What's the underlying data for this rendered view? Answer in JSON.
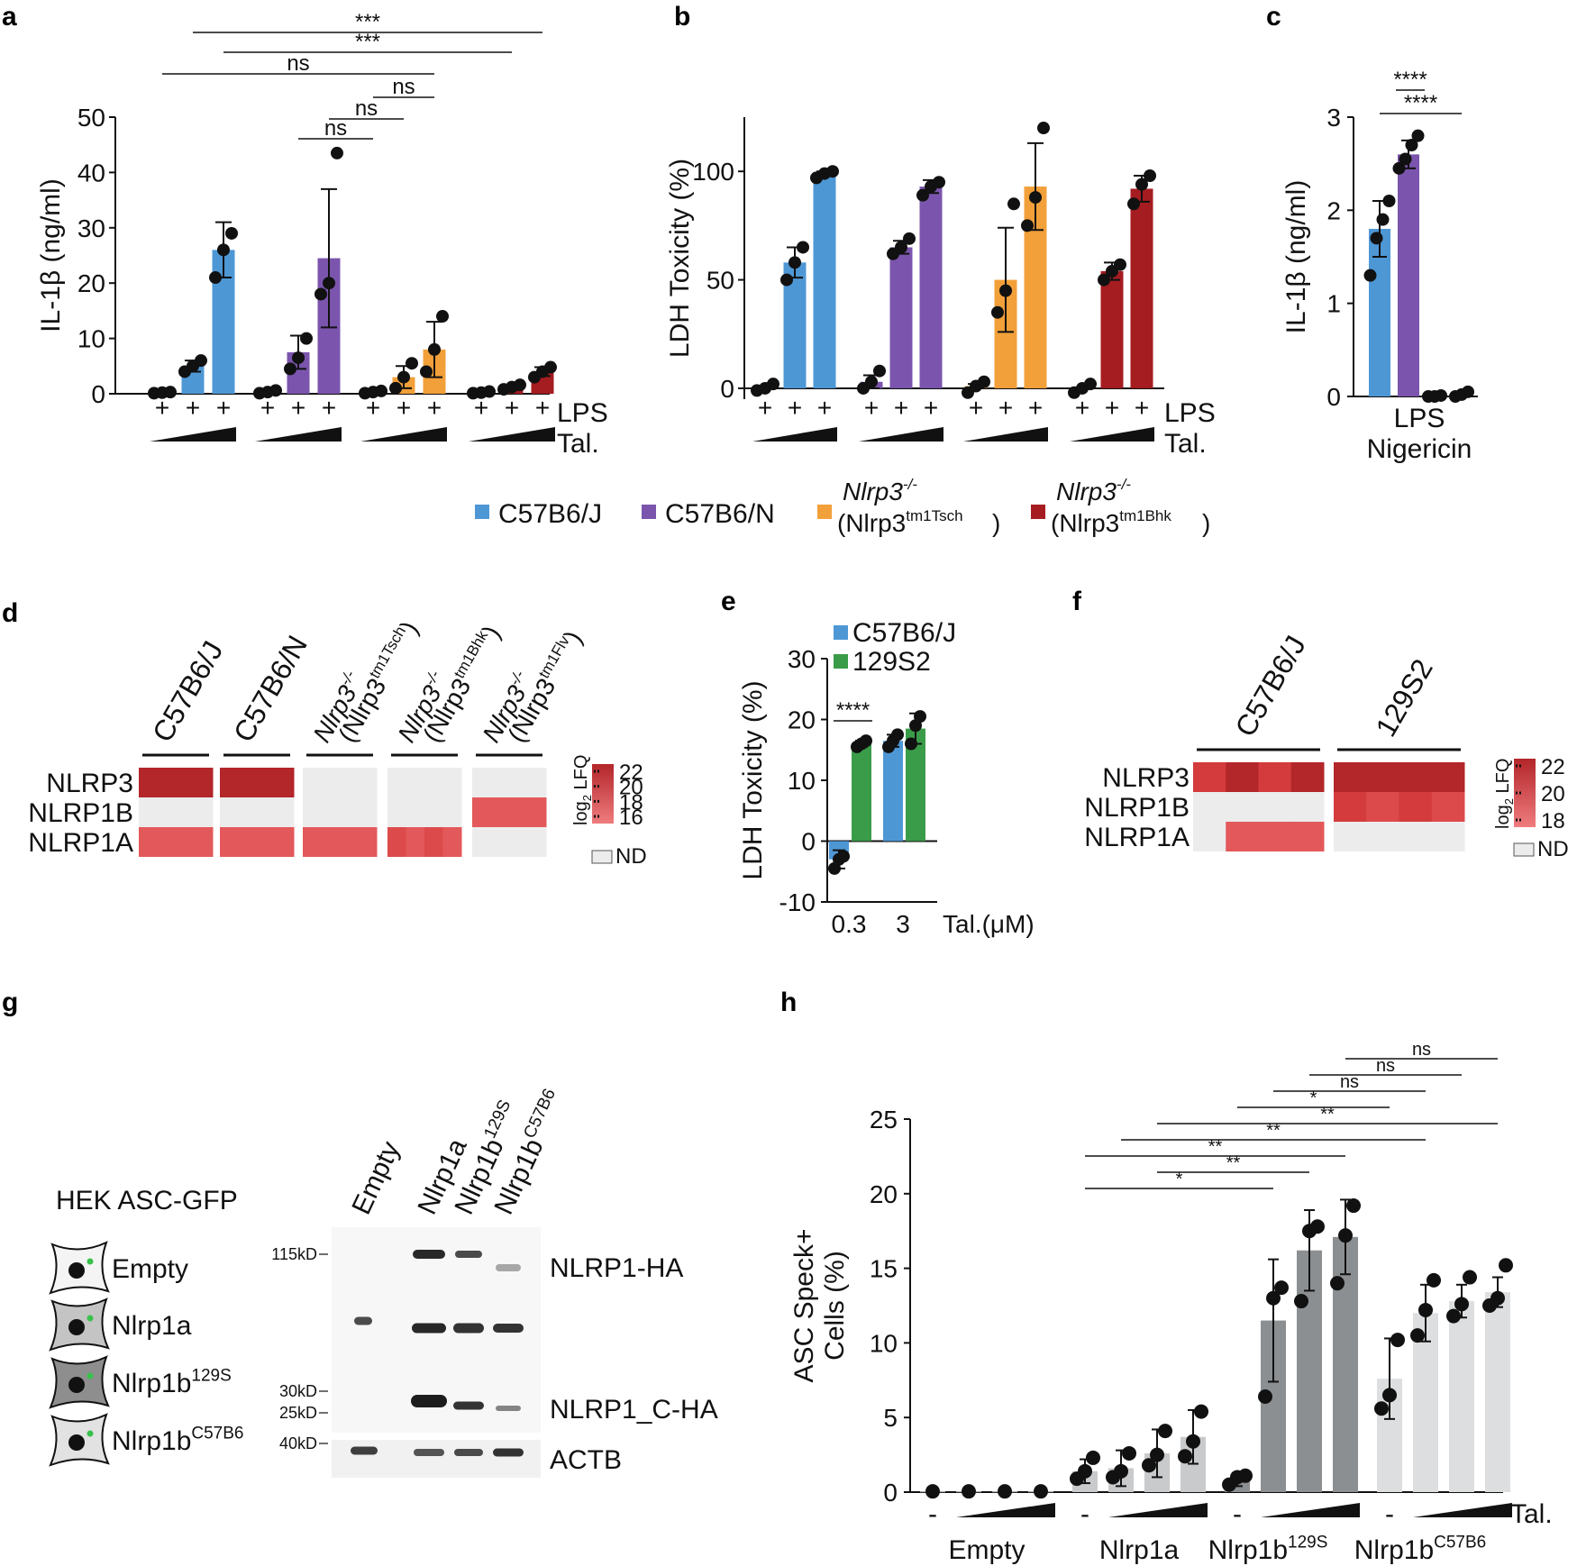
{
  "colors": {
    "blue": "#4e97d5",
    "purple": "#7b55ad",
    "orange": "#f2a03a",
    "darkred": "#a51c21",
    "green": "#3a9c48",
    "heat_hi": "#b3262a",
    "heat_mid": "#d33b3c",
    "heat_lo": "#e3595b",
    "heat_nd": "#ececed",
    "gray_light": "#c8cacc",
    "gray_mid": "#8c8f91",
    "gray_pale": "#dcdedf"
  },
  "legend_main": {
    "items": [
      {
        "label": "C57B6/J",
        "color": "blue"
      },
      {
        "label": "C57B6/N",
        "color": "purple"
      },
      {
        "label": "Nlrp3",
        "sup": "-/-",
        "sub_label": "(Nlrp3",
        "sub_sup": "tm1Tsch",
        "sub_end": ")",
        "color": "orange"
      },
      {
        "label": "Nlrp3",
        "sup": "-/-",
        "sub_label": "(Nlrp3",
        "sub_sup": "tm1Bhk",
        "sub_end": ")",
        "color": "darkred"
      }
    ]
  },
  "chart_data": [
    {
      "panel": "a",
      "type": "bar",
      "ylabel": "IL-1β (ng/ml)",
      "ylim": [
        0,
        50
      ],
      "yticks": [
        0,
        10,
        20,
        30,
        40,
        50
      ],
      "row_labels": [
        "LPS",
        "Tal."
      ],
      "plus": "+",
      "groups": [
        {
          "name": "C57B6/J",
          "color": "blue",
          "values": [
            0.2,
            5,
            26
          ],
          "err": [
            0.2,
            1,
            5
          ],
          "points": [
            [
              0.1,
              0.2,
              0.3
            ],
            [
              4,
              5,
              6
            ],
            [
              21,
              26,
              29
            ]
          ]
        },
        {
          "name": "C57B6/N",
          "color": "purple",
          "values": [
            0.3,
            7.5,
            24.5
          ],
          "err": [
            0.3,
            3,
            12.5
          ],
          "points": [
            [
              0.1,
              0.3,
              0.6
            ],
            [
              4.5,
              6.5,
              10
            ],
            [
              18,
              20,
              43.5
            ]
          ]
        },
        {
          "name": "Nlrp3 tm1Tsch",
          "color": "orange",
          "values": [
            0.2,
            3,
            8
          ],
          "err": [
            0.2,
            2,
            5
          ],
          "points": [
            [
              0.1,
              0.3,
              0.5
            ],
            [
              1,
              3,
              5.5
            ],
            [
              4,
              8,
              14
            ]
          ]
        },
        {
          "name": "Nlrp3 tm1Bhk",
          "color": "darkred",
          "values": [
            0.2,
            1.2,
            4
          ],
          "err": [
            0.2,
            0.4,
            0.8
          ],
          "points": [
            [
              0.1,
              0.2,
              0.4
            ],
            [
              0.8,
              1.2,
              1.6
            ],
            [
              3,
              4,
              4.8
            ]
          ]
        }
      ],
      "significance": [
        {
          "label": "***",
          "from": [
            0,
            1
          ],
          "to": [
            3,
            2
          ]
        },
        {
          "label": "***",
          "from": [
            0,
            2
          ],
          "to": [
            3,
            1
          ]
        },
        {
          "label": "ns",
          "from": [
            0,
            0
          ],
          "to": [
            2,
            2
          ]
        },
        {
          "label": "ns",
          "from": [
            2,
            0
          ],
          "to": [
            2,
            2
          ]
        },
        {
          "label": "ns",
          "from": [
            1,
            2
          ],
          "to": [
            2,
            1
          ]
        },
        {
          "label": "ns",
          "from": [
            1,
            1
          ],
          "to": [
            2,
            0
          ]
        }
      ]
    },
    {
      "panel": "b",
      "type": "bar",
      "ylabel": "LDH Toxicity (%)",
      "ylim": [
        -5,
        125
      ],
      "yticks": [
        0,
        50,
        100
      ],
      "row_labels": [
        "LPS",
        "Tal."
      ],
      "plus": "+",
      "groups": [
        {
          "name": "C57B6/J",
          "color": "blue",
          "values": [
            0,
            58,
            99
          ],
          "err": [
            0,
            7,
            1
          ],
          "points": [
            [
              -1,
              0,
              2
            ],
            [
              50,
              58,
              65
            ],
            [
              97,
              99,
              100
            ]
          ]
        },
        {
          "name": "C57B6/N",
          "color": "purple",
          "values": [
            3,
            65,
            93
          ],
          "err": [
            3,
            3,
            3
          ],
          "points": [
            [
              0,
              3,
              8
            ],
            [
              62,
              65,
              69
            ],
            [
              89,
              93,
              95
            ]
          ]
        },
        {
          "name": "Nlrp3 tm1Tsch",
          "color": "orange",
          "values": [
            1,
            50,
            93
          ],
          "err": [
            1,
            24,
            20
          ],
          "points": [
            [
              -2,
              1,
              3
            ],
            [
              35,
              45,
              85
            ],
            [
              75,
              88,
              120
            ]
          ]
        },
        {
          "name": "Nlrp3 tm1Bhk",
          "color": "darkred",
          "values": [
            0,
            54,
            92
          ],
          "err": [
            0,
            4,
            6
          ],
          "points": [
            [
              -2,
              0,
              2
            ],
            [
              50,
              54,
              57
            ],
            [
              85,
              94,
              98
            ]
          ]
        }
      ]
    },
    {
      "panel": "c",
      "type": "bar",
      "ylabel": "IL-1β (ng/ml)",
      "ylim": [
        0,
        3
      ],
      "yticks": [
        0,
        1,
        2,
        3
      ],
      "xlabel_lines": [
        "LPS",
        "Nigericin"
      ],
      "bars": [
        {
          "color": "blue",
          "value": 1.8,
          "err": 0.3,
          "points": [
            1.3,
            1.7,
            1.9,
            2.1
          ]
        },
        {
          "color": "purple",
          "value": 2.6,
          "err": 0.15,
          "points": [
            2.45,
            2.55,
            2.7,
            2.8
          ]
        },
        {
          "color": "orange",
          "value": 0.01,
          "err": 0,
          "points": [
            0,
            0,
            0.01
          ]
        },
        {
          "color": "darkred",
          "value": 0.02,
          "err": 0,
          "points": [
            0,
            0.02,
            0.05
          ]
        }
      ],
      "significance": [
        {
          "label": "****",
          "from": 0,
          "to": 1
        },
        {
          "label": "****",
          "from": 0,
          "to": 3
        }
      ]
    },
    {
      "panel": "e",
      "type": "bar",
      "ylabel": "LDH Toxicity (%)",
      "ylim": [
        -10,
        30
      ],
      "yticks": [
        -10,
        0,
        10,
        20,
        30
      ],
      "xlabel": "Tal.(μM)",
      "categories": [
        "0.3",
        "3"
      ],
      "series": [
        {
          "name": "C57B6/J",
          "color": "blue",
          "values": [
            -3,
            16.5
          ],
          "err": [
            1.5,
            1
          ],
          "points": [
            [
              -4.5,
              -3,
              -2.5
            ],
            [
              15.5,
              16.5,
              17.5
            ]
          ]
        },
        {
          "name": "129S2",
          "color": "green",
          "values": [
            16,
            18.5
          ],
          "err": [
            0.5,
            2.5
          ],
          "points": [
            [
              15.5,
              16,
              16.5
            ],
            [
              16,
              19,
              20.5
            ]
          ]
        }
      ],
      "significance": [
        {
          "label": "****",
          "category": 0
        }
      ]
    },
    {
      "panel": "h",
      "type": "bar",
      "ylabel_lines": [
        "ASC Speck+",
        "Cells (%)"
      ],
      "ylim": [
        0,
        25
      ],
      "yticks": [
        0,
        5,
        10,
        15,
        20,
        25
      ],
      "dash": "-",
      "tal_label": "Tal.",
      "groups": [
        {
          "name": "Empty",
          "sup": "",
          "color": "gray_light",
          "values": [
            0.05,
            0.05,
            0.05,
            0.05
          ],
          "err": [
            0,
            0,
            0,
            0
          ],
          "points": [
            [
              0.05
            ],
            [
              0.05
            ],
            [
              0.05
            ],
            [
              0.05
            ]
          ]
        },
        {
          "name": "Nlrp1a",
          "sup": "",
          "color": "gray_light",
          "values": [
            1.4,
            1.6,
            2.6,
            3.7
          ],
          "err": [
            0.8,
            1.2,
            1.6,
            1.8
          ],
          "points": [
            [
              0.9,
              1.4,
              2.3
            ],
            [
              1,
              1.4,
              2.6
            ],
            [
              1.8,
              2.5,
              4.1
            ],
            [
              2.4,
              3.4,
              5.4
            ]
          ]
        },
        {
          "name": "Nlrp1b",
          "sup": "129S",
          "color": "gray_mid",
          "values": [
            0.8,
            11.5,
            16.2,
            17.1
          ],
          "err": [
            0.4,
            4.1,
            2.7,
            2.5
          ],
          "points": [
            [
              0.5,
              1,
              1.1
            ],
            [
              6.4,
              13,
              13.7
            ],
            [
              12.8,
              17.5,
              17.8
            ],
            [
              14,
              17.2,
              19.2
            ]
          ]
        },
        {
          "name": "Nlrp1b",
          "sup": "C57B6",
          "color": "gray_pale",
          "values": [
            7.6,
            12,
            12.8,
            13.4
          ],
          "err": [
            2.7,
            1.9,
            1.1,
            1
          ],
          "points": [
            [
              5.6,
              6.5,
              10.2
            ],
            [
              10.5,
              12.2,
              14.2
            ],
            [
              11.8,
              12.6,
              14.4
            ],
            [
              12.5,
              13,
              15.2
            ]
          ]
        }
      ],
      "significance": [
        {
          "label": "ns",
          "from": [
            2,
            3
          ],
          "to": [
            3,
            3
          ]
        },
        {
          "label": "ns",
          "from": [
            2,
            2
          ],
          "to": [
            3,
            2
          ]
        },
        {
          "label": "ns",
          "from": [
            2,
            1
          ],
          "to": [
            3,
            1
          ]
        },
        {
          "label": "*",
          "from": [
            2,
            0
          ],
          "to": [
            3,
            0
          ]
        },
        {
          "label": "**",
          "from": [
            1,
            2
          ],
          "to": [
            3,
            3
          ]
        },
        {
          "label": "**",
          "from": [
            1,
            1
          ],
          "to": [
            3,
            1
          ]
        },
        {
          "label": "**",
          "from": [
            1,
            0
          ],
          "to": [
            2,
            3
          ]
        },
        {
          "label": "**",
          "from": [
            1,
            2
          ],
          "to": [
            2,
            2
          ]
        },
        {
          "label": "*",
          "from": [
            1,
            0
          ],
          "to": [
            2,
            1
          ]
        }
      ]
    }
  ],
  "heatmap_d": {
    "columns": [
      {
        "label": "C57B6/J"
      },
      {
        "label": "C57B6/N"
      },
      {
        "label": "Nlrp3",
        "sup": "-/-",
        "sub_label": "(Nlrp3",
        "sub_sup": "tm1Tsch",
        "sub_end": ")"
      },
      {
        "label": "Nlrp3",
        "sup": "-/-",
        "sub_label": "(Nlrp3",
        "sub_sup": "tm1Bhk",
        "sub_end": ")"
      },
      {
        "label": "Nlrp3",
        "sup": "-/-",
        "sub_label": "(Nlrp3",
        "sub_sup": "tm1Flv",
        "sub_end": ")"
      }
    ],
    "rows": [
      "NLRP3",
      "NLRP1B",
      "NLRP1A"
    ],
    "values": [
      [
        [
          22,
          22.5,
          22.3,
          21.8
        ],
        [
          21.8,
          22,
          22.2,
          21.5
        ],
        [
          null,
          null,
          null,
          null
        ],
        [
          null,
          null,
          null,
          null
        ],
        [
          null,
          null,
          null,
          null
        ]
      ],
      [
        [
          null,
          null,
          null,
          null
        ],
        [
          null,
          null,
          null,
          null
        ],
        [
          null,
          null,
          null,
          null
        ],
        [
          null,
          null,
          null,
          null
        ],
        [
          17.6,
          18,
          18.2,
          17.8
        ]
      ],
      [
        [
          18.6,
          18.4,
          18.5,
          18.3
        ],
        [
          18.4,
          18.6,
          18.5,
          18.7
        ],
        [
          18.8,
          18.5,
          18.4,
          18.6
        ],
        [
          19,
          18.6,
          18.9,
          18.5
        ],
        [
          null,
          null,
          null,
          null
        ]
      ]
    ],
    "scale_title": "log2 LFQ",
    "scale_ticks": [
      16,
      18,
      20,
      22
    ],
    "nd_label": "ND"
  },
  "heatmap_f": {
    "columns": [
      {
        "label": "C57B6/J"
      },
      {
        "label": "129S2"
      }
    ],
    "rows": [
      "NLRP3",
      "NLRP1B",
      "NLRP1A"
    ],
    "values": [
      [
        [
          21,
          21.6,
          21.2,
          21.5
        ],
        [
          21.8,
          22.2,
          22.0,
          22.1
        ]
      ],
      [
        [
          null,
          null,
          null,
          null
        ],
        [
          19.8,
          19.4,
          19.9,
          19.3
        ]
      ],
      [
        [
          null,
          18.7,
          18.8,
          18.6
        ],
        [
          null,
          null,
          null,
          null
        ]
      ]
    ],
    "scale_title": "log2 LFQ",
    "scale_ticks": [
      18,
      20,
      22
    ],
    "nd_label": "ND"
  },
  "blot_g": {
    "title": "HEK ASC-GFP",
    "cells": [
      {
        "label": "Empty",
        "sup": "",
        "shade": "#f4f4f4"
      },
      {
        "label": "Nlrp1a",
        "sup": "",
        "shade": "#c4c4c4"
      },
      {
        "label": "Nlrp1b",
        "sup": "129S",
        "shade": "#8e8e8e"
      },
      {
        "label": "Nlrp1b",
        "sup": "C57B6",
        "shade": "#e2e2e2"
      }
    ],
    "lanes": [
      {
        "label": "Empty",
        "sup": ""
      },
      {
        "label": "Nlrp1a",
        "sup": ""
      },
      {
        "label": "Nlrp1b",
        "sup": "129S"
      },
      {
        "label": "Nlrp1b",
        "sup": "C57B6"
      }
    ],
    "markers": [
      "115kD",
      "30kD",
      "25kD",
      "40kD"
    ],
    "band_labels": [
      "NLRP1-HA",
      "NLRP1_C-HA",
      "ACTB"
    ]
  },
  "panel_letters": [
    "a",
    "b",
    "c",
    "d",
    "e",
    "f",
    "g",
    "h"
  ]
}
